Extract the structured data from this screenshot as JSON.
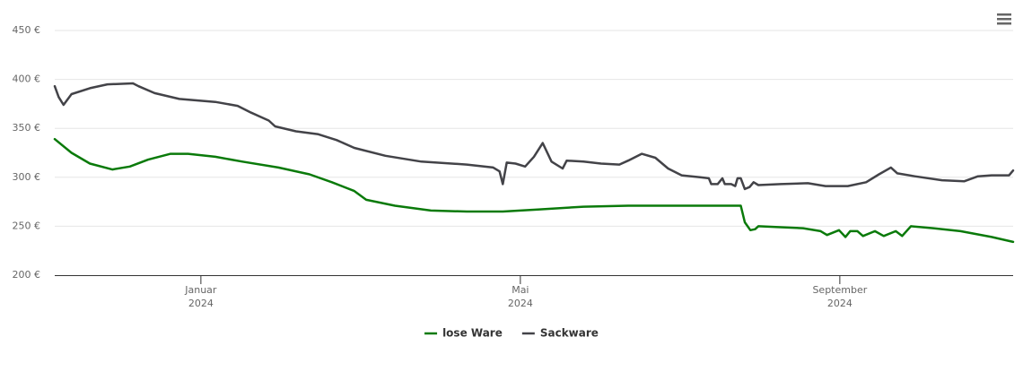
{
  "chart_data": {
    "type": "line",
    "xlim": [
      -0.83,
      11.17
    ],
    "xticks": [
      {
        "value": 1,
        "label": "Januar\n2024"
      },
      {
        "value": 5,
        "label": "Mai\n2024"
      },
      {
        "value": 9,
        "label": "September\n2024"
      }
    ],
    "ylim": [
      200,
      450
    ],
    "yticks": [
      {
        "value": 200,
        "label": "200 €"
      },
      {
        "value": 250,
        "label": "250 €"
      },
      {
        "value": 300,
        "label": "300 €"
      },
      {
        "value": 350,
        "label": "350 €"
      },
      {
        "value": 400,
        "label": "400 €"
      },
      {
        "value": 450,
        "label": "450 €"
      }
    ],
    "grid": true,
    "legend": "bottom",
    "series": [
      {
        "name": "lose Ware",
        "color": "#0a7a0a",
        "x": [
          -0.83,
          -0.62,
          -0.39,
          -0.11,
          0.11,
          0.34,
          0.62,
          0.84,
          1.18,
          1.52,
          1.97,
          2.36,
          2.64,
          2.92,
          3.07,
          3.43,
          3.88,
          4.33,
          4.78,
          5.22,
          5.79,
          6.35,
          7.25,
          7.76,
          7.81,
          7.88,
          7.94,
          7.98,
          8.26,
          8.54,
          8.76,
          8.84,
          8.99,
          9.07,
          9.13,
          9.22,
          9.29,
          9.44,
          9.55,
          9.7,
          9.78,
          9.89,
          10.17,
          10.51,
          10.9,
          11.17
        ],
        "values": [
          339,
          325,
          314,
          308,
          311,
          318,
          324,
          324,
          321,
          316,
          310,
          303,
          295,
          286,
          277,
          271,
          266,
          265,
          265,
          267,
          270,
          271,
          271,
          271,
          254,
          246,
          247,
          250,
          249,
          248,
          245,
          241,
          246,
          239,
          245,
          245,
          240,
          245,
          240,
          245,
          240,
          250,
          248,
          245,
          239,
          234
        ]
      },
      {
        "name": "Sackware",
        "color": "#434348",
        "x": [
          -0.83,
          -0.78,
          -0.72,
          -0.62,
          -0.39,
          -0.17,
          0.15,
          0.22,
          0.42,
          0.73,
          1.18,
          1.46,
          1.63,
          1.85,
          1.93,
          2.19,
          2.47,
          2.7,
          2.92,
          3.31,
          3.76,
          4.33,
          4.66,
          4.74,
          4.78,
          4.83,
          4.94,
          5.06,
          5.17,
          5.28,
          5.39,
          5.53,
          5.58,
          5.79,
          6.01,
          6.24,
          6.35,
          6.52,
          6.69,
          6.85,
          7.02,
          7.25,
          7.36,
          7.39,
          7.47,
          7.53,
          7.56,
          7.64,
          7.69,
          7.72,
          7.76,
          7.81,
          7.87,
          7.92,
          7.98,
          8.26,
          8.6,
          8.82,
          9.1,
          9.33,
          9.49,
          9.64,
          9.72,
          9.94,
          10.28,
          10.56,
          10.73,
          10.9,
          11.12,
          11.17
        ],
        "values": [
          393,
          382,
          374,
          385,
          391,
          395,
          396,
          393,
          386,
          380,
          377,
          373,
          366,
          358,
          352,
          347,
          344,
          338,
          330,
          322,
          316,
          313,
          310,
          306,
          293,
          315,
          314,
          311,
          321,
          335,
          316,
          309,
          317,
          316,
          314,
          313,
          317,
          324,
          320,
          309,
          302,
          300,
          299,
          293,
          293,
          299,
          293,
          293,
          291,
          299,
          299,
          288,
          290,
          295,
          292,
          293,
          294,
          291,
          291,
          295,
          303,
          310,
          304,
          301,
          297,
          296,
          301,
          302,
          302,
          307
        ]
      }
    ]
  }
}
